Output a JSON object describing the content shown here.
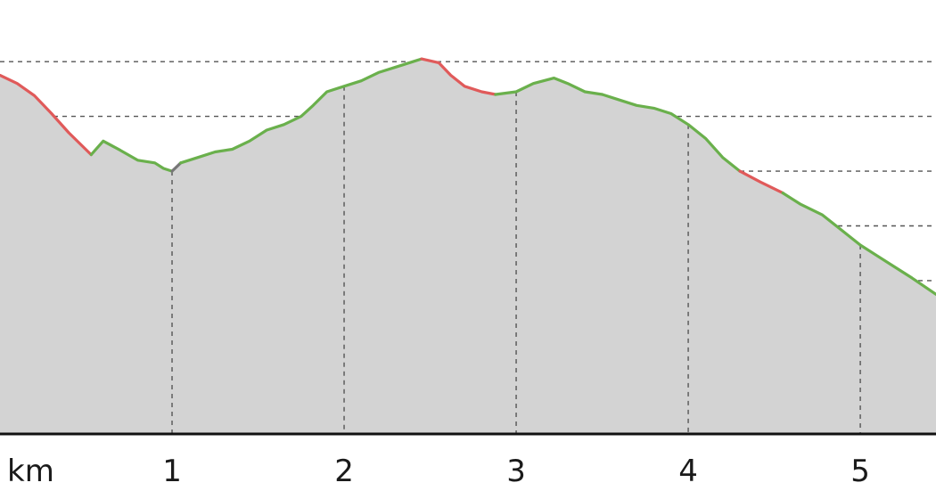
{
  "chart_data": {
    "type": "area",
    "title": "",
    "xlabel": "km",
    "ylabel": "",
    "xlim": [
      0.0,
      5.44
    ],
    "ylim": [
      0,
      7.6
    ],
    "x_ticks": [
      1,
      2,
      3,
      4,
      5
    ],
    "x_tick_labels": [
      "1",
      "2",
      "3",
      "4",
      "5"
    ],
    "y_gridlines": [
      0.8,
      1.8,
      2.8,
      3.8,
      4.8,
      5.8,
      6.8
    ],
    "grid": true,
    "colors": {
      "fill": "#d3d3d3",
      "climb": "#6ab04c",
      "descent": "#e05a5a",
      "flat": "#777777",
      "axis": "#111111"
    },
    "series": [
      {
        "points": [
          [
            0.0,
            6.55
          ],
          [
            0.1,
            6.4
          ],
          [
            0.2,
            6.18
          ],
          [
            0.3,
            5.85
          ],
          [
            0.4,
            5.5
          ],
          [
            0.53,
            5.1
          ],
          [
            0.6,
            5.35
          ],
          [
            0.7,
            5.18
          ],
          [
            0.8,
            5.0
          ],
          [
            0.9,
            4.95
          ],
          [
            0.95,
            4.85
          ],
          [
            1.0,
            4.8
          ],
          [
            1.05,
            4.95
          ],
          [
            1.15,
            5.05
          ],
          [
            1.25,
            5.15
          ],
          [
            1.35,
            5.2
          ],
          [
            1.45,
            5.35
          ],
          [
            1.55,
            5.55
          ],
          [
            1.65,
            5.65
          ],
          [
            1.75,
            5.8
          ],
          [
            1.82,
            6.0
          ],
          [
            1.9,
            6.25
          ],
          [
            2.0,
            6.35
          ],
          [
            2.1,
            6.45
          ],
          [
            2.2,
            6.6
          ],
          [
            2.3,
            6.7
          ],
          [
            2.4,
            6.8
          ],
          [
            2.45,
            6.85
          ],
          [
            2.55,
            6.78
          ],
          [
            2.62,
            6.55
          ],
          [
            2.7,
            6.35
          ],
          [
            2.8,
            6.25
          ],
          [
            2.88,
            6.2
          ],
          [
            3.0,
            6.25
          ],
          [
            3.1,
            6.4
          ],
          [
            3.22,
            6.5
          ],
          [
            3.3,
            6.4
          ],
          [
            3.4,
            6.25
          ],
          [
            3.5,
            6.2
          ],
          [
            3.6,
            6.1
          ],
          [
            3.7,
            6.0
          ],
          [
            3.8,
            5.95
          ],
          [
            3.9,
            5.85
          ],
          [
            4.0,
            5.65
          ],
          [
            4.1,
            5.4
          ],
          [
            4.2,
            5.05
          ],
          [
            4.3,
            4.8
          ],
          [
            4.42,
            4.6
          ],
          [
            4.55,
            4.4
          ],
          [
            4.65,
            4.2
          ],
          [
            4.78,
            4.0
          ],
          [
            4.9,
            3.7
          ],
          [
            5.0,
            3.45
          ],
          [
            5.1,
            3.25
          ],
          [
            5.2,
            3.05
          ],
          [
            5.3,
            2.85
          ],
          [
            5.44,
            2.55
          ]
        ],
        "segments": [
          {
            "from": 0,
            "to": 5,
            "grade": "descent"
          },
          {
            "from": 5,
            "to": 11,
            "grade": "climb"
          },
          {
            "from": 11,
            "to": 12,
            "grade": "flat"
          },
          {
            "from": 12,
            "to": 27,
            "grade": "climb"
          },
          {
            "from": 27,
            "to": 32,
            "grade": "descent"
          },
          {
            "from": 32,
            "to": 38,
            "grade": "climb"
          },
          {
            "from": 38,
            "to": 46,
            "grade": "climb"
          },
          {
            "from": 46,
            "to": 48,
            "grade": "descent"
          },
          {
            "from": 48,
            "to": 56,
            "grade": "climb"
          }
        ]
      }
    ]
  }
}
